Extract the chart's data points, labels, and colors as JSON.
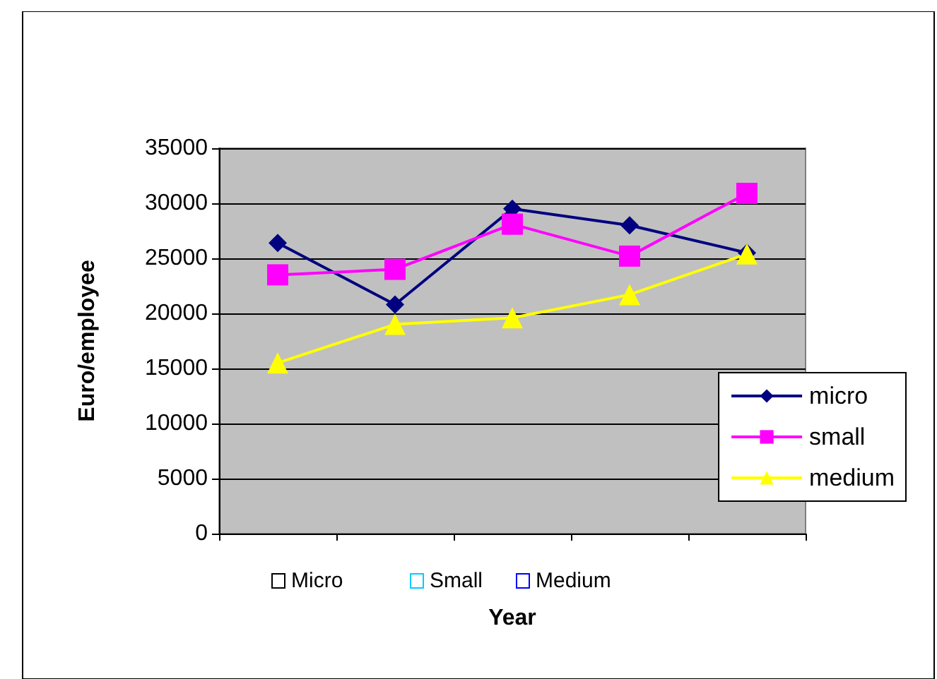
{
  "chart_data": {
    "type": "line",
    "xlabel": "Year",
    "ylabel": "Euro/employee",
    "categories": [
      null,
      null,
      null,
      null,
      null
    ],
    "series": [
      {
        "name": "micro",
        "color": "#000080",
        "marker": "diamond",
        "values": [
          26400,
          20800,
          29500,
          28000,
          25500
        ]
      },
      {
        "name": "small",
        "color": "#ff00ff",
        "marker": "square",
        "values": [
          23500,
          24000,
          28100,
          25200,
          30900
        ]
      },
      {
        "name": "medium",
        "color": "#ffff00",
        "marker": "triangle",
        "values": [
          15500,
          19000,
          19600,
          21700,
          25400
        ]
      }
    ],
    "ylim": [
      0,
      35000
    ],
    "yticks": [
      0,
      5000,
      10000,
      15000,
      20000,
      25000,
      30000,
      35000
    ],
    "grid": "y",
    "legend": "right",
    "annotations": [
      "Micro",
      "Small",
      "Medium"
    ]
  }
}
